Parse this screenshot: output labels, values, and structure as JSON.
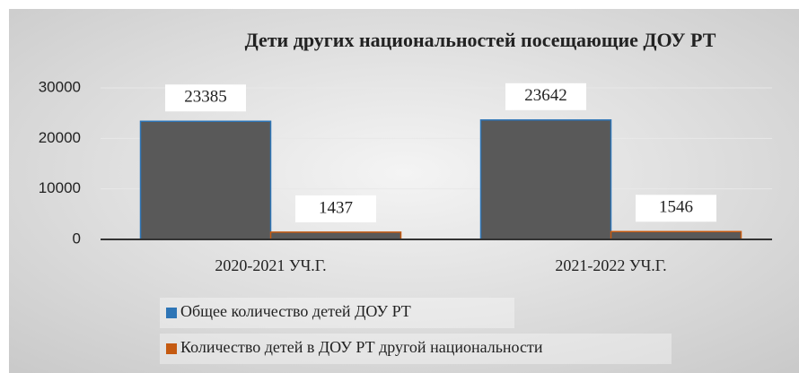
{
  "chart_data": {
    "type": "bar",
    "title": "Дети других национальностей посещающие ДОУ РТ",
    "categories": [
      "2020-2021 УЧ.Г.",
      "2021-2022 УЧ.Г."
    ],
    "series": [
      {
        "name": "Общее количество детей  ДОУ РТ",
        "color": "#2e75b6",
        "values": [
          23385,
          23642
        ]
      },
      {
        "name": "Количество детей в ДОУ РТ другой национальности",
        "color": "#c55a11",
        "values": [
          1437,
          1546
        ]
      }
    ],
    "fill": "#595959",
    "ylim": [
      0,
      30000
    ],
    "yticks": [
      0,
      10000,
      20000,
      30000
    ],
    "grid": true,
    "legend": "bottom"
  }
}
